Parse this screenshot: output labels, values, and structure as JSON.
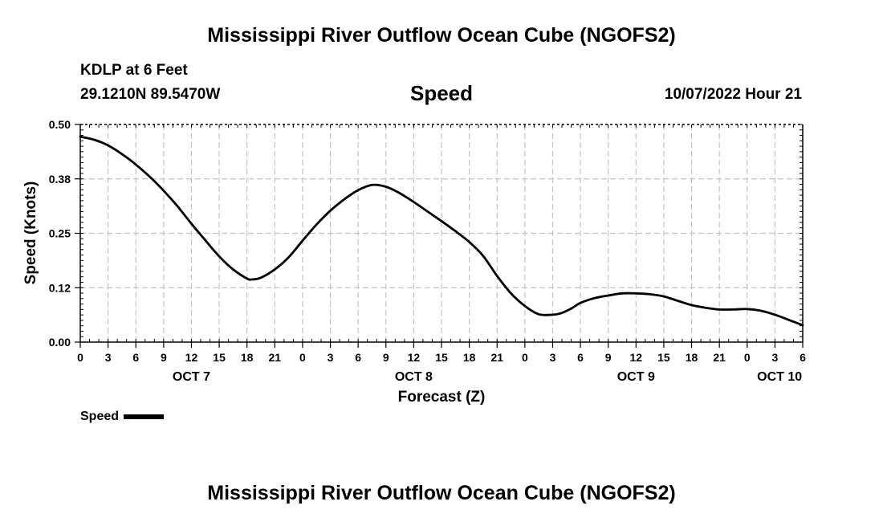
{
  "page": {
    "title": "Mississippi River Outflow Ocean Cube (NGOFS2)",
    "title_repeat": "Mississippi River Outflow Ocean Cube (NGOFS2)"
  },
  "header": {
    "station": "KDLP at 6 Feet",
    "coords": "29.1210N  89.5470W",
    "chart_title": "Speed",
    "datetime": "10/07/2022 Hour 21"
  },
  "legend": {
    "label": "Speed"
  },
  "chart_data": {
    "type": "line",
    "title": "Speed",
    "xlabel": "Forecast (Z)",
    "ylabel": "Speed (Knots)",
    "x_unit": "hours from OCT 7 00Z",
    "xlim": [
      0,
      78
    ],
    "ylim": [
      0,
      0.5
    ],
    "y_ticks": [
      0,
      0.125,
      0.25,
      0.375,
      0.5
    ],
    "y_tick_labels": [
      "0.00",
      "0.12",
      "0.25",
      "0.38",
      "0.50"
    ],
    "x_ticks": [
      0,
      3,
      6,
      9,
      12,
      15,
      18,
      21,
      24,
      27,
      30,
      33,
      36,
      39,
      42,
      45,
      48,
      51,
      54,
      57,
      60,
      63,
      66,
      69,
      72,
      75,
      78
    ],
    "x_tick_labels": [
      "0",
      "3",
      "6",
      "9",
      "12",
      "15",
      "18",
      "21",
      "0",
      "3",
      "6",
      "9",
      "12",
      "15",
      "18",
      "21",
      "0",
      "3",
      "6",
      "9",
      "12",
      "15",
      "18",
      "21",
      "0",
      "3",
      "6"
    ],
    "day_labels": [
      {
        "hour": 12,
        "label": "OCT 7"
      },
      {
        "hour": 36,
        "label": "OCT 8"
      },
      {
        "hour": 60,
        "label": "OCT 9"
      },
      {
        "hour": 75.5,
        "label": "OCT 10"
      }
    ],
    "grid": true,
    "series": [
      {
        "name": "Speed",
        "x": [
          0,
          1.5,
          3,
          4.5,
          6,
          7.5,
          9,
          10.5,
          12,
          13.5,
          15,
          16.5,
          18,
          18.5,
          19.5,
          21,
          22.5,
          24,
          25.5,
          27,
          28.5,
          30,
          31.5,
          33,
          34.5,
          36,
          37.5,
          39,
          40.5,
          42,
          43.5,
          45,
          46.5,
          48,
          49.5,
          51,
          52,
          53,
          54,
          55.5,
          57,
          58.5,
          60,
          61.5,
          63,
          64.5,
          66,
          67.5,
          69,
          70.5,
          72,
          73.5,
          75,
          76.5,
          78
        ],
        "y": [
          0.472,
          0.465,
          0.452,
          0.432,
          0.408,
          0.38,
          0.348,
          0.312,
          0.272,
          0.234,
          0.197,
          0.167,
          0.146,
          0.144,
          0.148,
          0.167,
          0.195,
          0.233,
          0.27,
          0.302,
          0.328,
          0.349,
          0.361,
          0.357,
          0.342,
          0.322,
          0.3,
          0.278,
          0.255,
          0.23,
          0.198,
          0.152,
          0.112,
          0.083,
          0.064,
          0.063,
          0.067,
          0.077,
          0.09,
          0.101,
          0.107,
          0.112,
          0.112,
          0.11,
          0.105,
          0.095,
          0.085,
          0.079,
          0.075,
          0.075,
          0.076,
          0.072,
          0.063,
          0.051,
          0.039
        ]
      }
    ]
  }
}
